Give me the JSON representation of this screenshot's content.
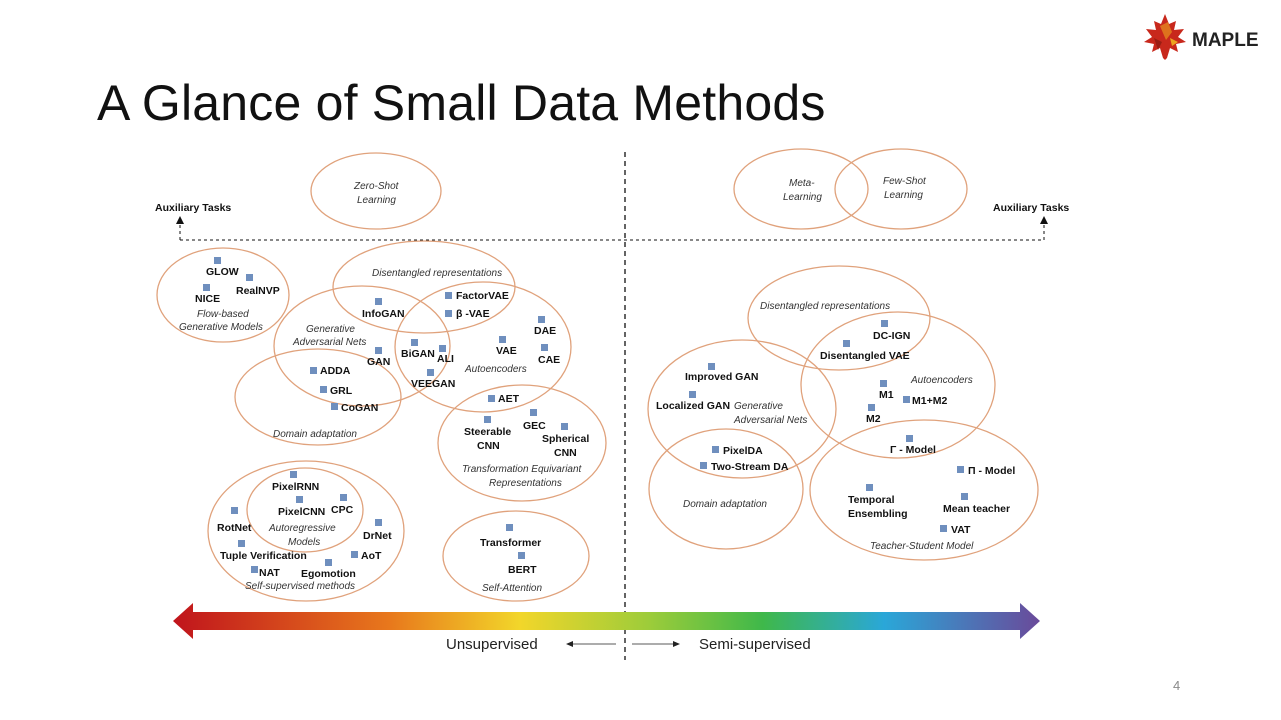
{
  "slide": {
    "title": "A Glance of Small Data Methods",
    "page_number": "4",
    "logo_text": "MAPLE"
  },
  "axis": {
    "auxiliary_left": "Auxiliary Tasks",
    "auxiliary_right": "Auxiliary Tasks",
    "unsupervised": "Unsupervised",
    "semi_supervised": "Semi-supervised"
  },
  "groups_left": {
    "zero_shot_1": "Zero-Shot",
    "zero_shot_2": "Learning",
    "disentangled": "Disentangled representations",
    "flow_1": "Flow-based",
    "flow_2": "Generative Models",
    "gan_1": "Generative",
    "gan_2": "Adversarial Nets",
    "autoencoders": "Autoencoders",
    "domain_adaptation": "Domain adaptation",
    "teq_1": "Transformation Equivariant",
    "teq_2": "Representations",
    "autoregressive_1": "Autoregressive",
    "autoregressive_2": "Models",
    "self_supervised": "Self-supervised methods",
    "self_attention": "Self-Attention"
  },
  "groups_right": {
    "meta_1": "Meta-",
    "meta_2": "Learning",
    "few_shot_1": "Few-Shot",
    "few_shot_2": "Learning",
    "disentangled": "Disentangled representations",
    "gan_1": "Generative",
    "gan_2": "Adversarial Nets",
    "autoencoders": "Autoencoders",
    "domain_adaptation": "Domain adaptation",
    "teacher_student": "Teacher-Student Model"
  },
  "methods_left": {
    "glow": "GLOW",
    "realnvp": "RealNVP",
    "nice": "NICE",
    "infogan": "InfoGAN",
    "factorvae": "FactorVAE",
    "beta_vae": "β -VAE",
    "dae": "DAE",
    "vae": "VAE",
    "cae": "CAE",
    "bigan": "BiGAN",
    "ali": "ALI",
    "gan": "GAN",
    "veegan": "VEEGAN",
    "adda": "ADDA",
    "grl": "GRL",
    "cogan": "CoGAN",
    "aet": "AET",
    "steerable_1": "Steerable",
    "steerable_2": "CNN",
    "gec": "GEC",
    "spherical_1": "Spherical",
    "spherical_2": "CNN",
    "pixelrnn": "PixelRNN",
    "pixelcnn": "PixelCNN",
    "cpc": "CPC",
    "rotnet": "RotNet",
    "drnet": "DrNet",
    "tuple": "Tuple Verification",
    "aot": "AoT",
    "nat": "NAT",
    "egomotion": "Egomotion",
    "transformer": "Transformer",
    "bert": "BERT"
  },
  "methods_right": {
    "dc_ign": "DC-IGN",
    "disentangled_vae": "Disentangled VAE",
    "improved_gan": "Improved GAN",
    "localized_gan": "Localized GAN",
    "m1": "M1",
    "m1m2": "M1+M2",
    "m2": "M2",
    "gamma_model": "Γ - Model",
    "pixelda": "PixelDA",
    "two_stream": "Two-Stream DA",
    "pi_model": "Π - Model",
    "temporal_1": "Temporal",
    "temporal_2": "Ensembling",
    "mean_teacher": "Mean teacher",
    "vat": "VAT"
  },
  "colors": {
    "ellipse_stroke": "#e0a27c",
    "marker": "#6f8fbe",
    "gradient": [
      "#c0141c",
      "#e8a21a",
      "#f2e52a",
      "#3fb84a",
      "#2aa7d8",
      "#6a4a9a"
    ]
  }
}
